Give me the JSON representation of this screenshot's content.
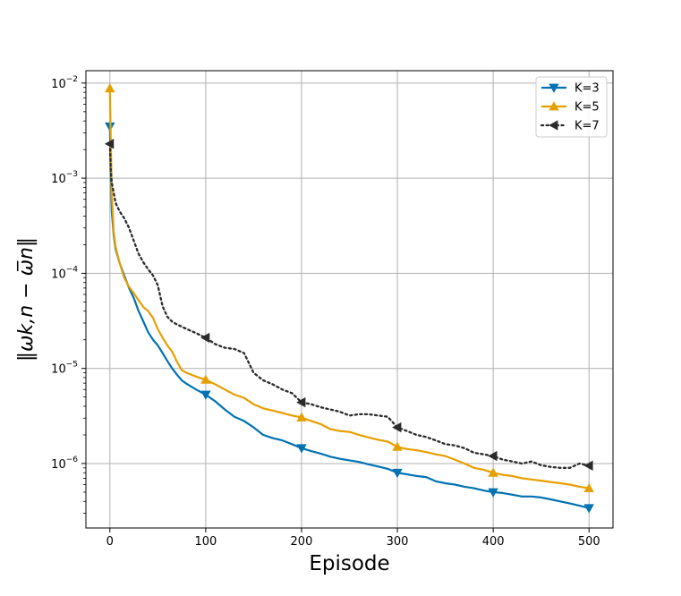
{
  "chart_data": {
    "type": "line",
    "title": "",
    "xlabel": "Episode",
    "ylabel": "‖ωk,n − ω̅n‖",
    "yscale": "log",
    "xlim": [
      -25,
      525
    ],
    "ylim": [
      2.1e-07,
      0.0135
    ],
    "grid": true,
    "legend": "top-right",
    "x_ticks": [
      0,
      100,
      200,
      300,
      400,
      500
    ],
    "x_tick_labels": [
      "0",
      "100",
      "200",
      "300",
      "400",
      "500"
    ],
    "y_ticks": [
      1e-06,
      1e-05,
      0.0001,
      0.001,
      0.01
    ],
    "y_tick_labels": [
      {
        "base": "10",
        "exp": "−6"
      },
      {
        "base": "10",
        "exp": "−5"
      },
      {
        "base": "10",
        "exp": "−4"
      },
      {
        "base": "10",
        "exp": "−3"
      },
      {
        "base": "10",
        "exp": "−2"
      }
    ],
    "series": [
      {
        "name": "K=3",
        "color": "#0072b2",
        "style": "solid",
        "marker": "triangle-down",
        "x": [
          0,
          1,
          2,
          4,
          6,
          10,
          15,
          20,
          25,
          30,
          35,
          40,
          45,
          50,
          55,
          60,
          65,
          70,
          75,
          80,
          90,
          100,
          110,
          120,
          130,
          140,
          150,
          160,
          170,
          180,
          190,
          200,
          210,
          220,
          230,
          240,
          250,
          260,
          270,
          280,
          290,
          300,
          310,
          320,
          330,
          340,
          350,
          360,
          370,
          380,
          390,
          400,
          410,
          420,
          430,
          440,
          450,
          460,
          470,
          480,
          490,
          500
        ],
        "y": [
          0.0035,
          0.0012,
          0.00045,
          0.00025,
          0.00018,
          0.00013,
          9.5e-05,
          7e-05,
          5.5e-05,
          4e-05,
          3.1e-05,
          2.4e-05,
          2e-05,
          1.75e-05,
          1.45e-05,
          1.2e-05,
          1e-05,
          8.6e-06,
          7.5e-06,
          6.9e-06,
          6e-06,
          5.3e-06,
          4.5e-06,
          3.7e-06,
          3.1e-06,
          2.8e-06,
          2.4e-06,
          2e-06,
          1.85e-06,
          1.75e-06,
          1.6e-06,
          1.45e-06,
          1.35e-06,
          1.27e-06,
          1.18e-06,
          1.12e-06,
          1.08e-06,
          1.04e-06,
          9.8e-07,
          9.3e-07,
          8.8e-07,
          8e-07,
          7.7e-07,
          7.4e-07,
          7.2e-07,
          6.5e-07,
          6.2e-07,
          6e-07,
          5.7e-07,
          5.5e-07,
          5.2e-07,
          5e-07,
          4.9e-07,
          4.7e-07,
          4.5e-07,
          4.5e-07,
          4.4e-07,
          4.2e-07,
          4e-07,
          3.8e-07,
          3.6e-07,
          3.4e-07
        ],
        "marker_x": [
          0,
          100,
          200,
          300,
          400,
          500
        ],
        "marker_y": [
          0.0035,
          5.3e-06,
          1.45e-06,
          8e-07,
          5e-07,
          3.4e-07
        ]
      },
      {
        "name": "K=5",
        "color": "#e69f00",
        "style": "solid",
        "marker": "triangle-up",
        "x": [
          0,
          1,
          2,
          4,
          6,
          10,
          15,
          20,
          25,
          30,
          35,
          40,
          45,
          50,
          55,
          60,
          65,
          70,
          75,
          80,
          90,
          100,
          110,
          120,
          130,
          140,
          150,
          160,
          170,
          180,
          190,
          200,
          210,
          220,
          230,
          240,
          250,
          260,
          270,
          280,
          290,
          300,
          310,
          320,
          330,
          340,
          350,
          360,
          370,
          380,
          390,
          400,
          410,
          420,
          430,
          440,
          450,
          460,
          470,
          480,
          490,
          500
        ],
        "y": [
          0.0088,
          0.0025,
          0.0007,
          0.00027,
          0.00019,
          0.00013,
          9e-05,
          7.2e-05,
          6.2e-05,
          5.2e-05,
          4.4e-05,
          4e-05,
          3.4e-05,
          2.6e-05,
          2.1e-05,
          1.75e-05,
          1.5e-05,
          1.18e-05,
          9.6e-06,
          9e-06,
          8.2e-06,
          7.6e-06,
          6.8e-06,
          6e-06,
          5.3e-06,
          4.9e-06,
          4.2e-06,
          3.8e-06,
          3.6e-06,
          3.4e-06,
          3.2e-06,
          3.05e-06,
          2.8e-06,
          2.6e-06,
          2.3e-06,
          2.2e-06,
          2.15e-06,
          2e-06,
          1.88e-06,
          1.78e-06,
          1.7e-06,
          1.5e-06,
          1.42e-06,
          1.38e-06,
          1.32e-06,
          1.25e-06,
          1.2e-06,
          1.1e-06,
          1e-06,
          9e-07,
          8.6e-07,
          8e-07,
          7.6e-07,
          7.4e-07,
          7e-07,
          6.8e-07,
          6.6e-07,
          6.4e-07,
          6.2e-07,
          6e-07,
          5.7e-07,
          5.5e-07
        ],
        "marker_x": [
          0,
          100,
          200,
          300,
          400,
          500
        ],
        "marker_y": [
          0.0088,
          7.6e-06,
          3.05e-06,
          1.5e-06,
          8e-07,
          5.5e-07
        ]
      },
      {
        "name": "K=7",
        "color": "#2b2b2b",
        "style": "dotted",
        "marker": "triangle-left",
        "x": [
          0,
          1,
          2,
          4,
          6,
          10,
          15,
          20,
          25,
          30,
          35,
          40,
          45,
          50,
          55,
          60,
          65,
          70,
          75,
          80,
          90,
          100,
          110,
          120,
          130,
          140,
          150,
          160,
          170,
          180,
          190,
          200,
          210,
          220,
          230,
          240,
          250,
          260,
          270,
          280,
          290,
          300,
          310,
          320,
          330,
          340,
          350,
          360,
          370,
          380,
          390,
          400,
          410,
          420,
          430,
          440,
          450,
          460,
          470,
          480,
          490,
          500
        ],
        "y": [
          0.0023,
          0.0012,
          0.0009,
          0.0007,
          0.00055,
          0.00045,
          0.00038,
          0.0003,
          0.00022,
          0.00016,
          0.00013,
          0.00011,
          9.5e-05,
          7.5e-05,
          4.5e-05,
          3.5e-05,
          3.1e-05,
          2.9e-05,
          2.75e-05,
          2.6e-05,
          2.35e-05,
          2.1e-05,
          1.8e-05,
          1.65e-05,
          1.6e-05,
          1.45e-05,
          9e-06,
          7.5e-06,
          6.8e-06,
          6e-06,
          5.5e-06,
          4.4e-06,
          4.2e-06,
          3.9e-06,
          3.7e-06,
          3.5e-06,
          3.2e-06,
          3.3e-06,
          3.3e-06,
          3.2e-06,
          3.1e-06,
          2.4e-06,
          2.2e-06,
          2e-06,
          1.9e-06,
          1.75e-06,
          1.6e-06,
          1.55e-06,
          1.45e-06,
          1.3e-06,
          1.25e-06,
          1.2e-06,
          1.1e-06,
          1.05e-06,
          1e-06,
          1.05e-06,
          9.6e-07,
          9.2e-07,
          9e-07,
          9e-07,
          1e-06,
          9.5e-07
        ],
        "marker_x": [
          0,
          100,
          200,
          300,
          400,
          500
        ],
        "marker_y": [
          0.0023,
          2.1e-05,
          4.4e-06,
          2.4e-06,
          1.2e-06,
          9.5e-07
        ]
      }
    ]
  }
}
